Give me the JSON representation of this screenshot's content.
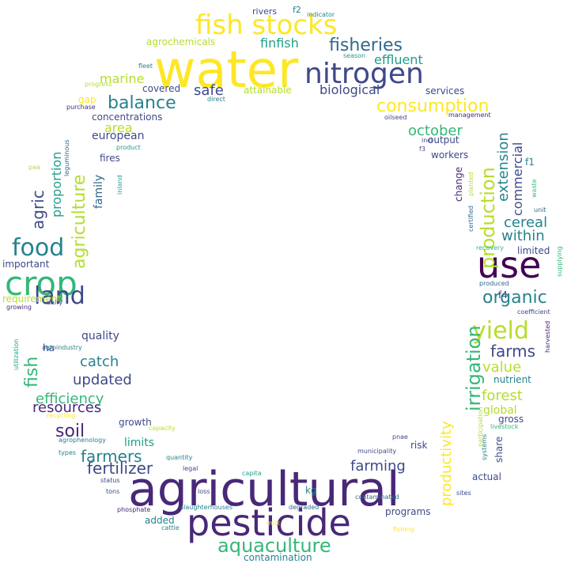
{
  "palette": {
    "yellow": "#fde725",
    "lime": "#b5de2b",
    "light_green": "#6ece58",
    "green": "#35b779",
    "teal_green": "#1f9e89",
    "teal": "#26828e",
    "blue_teal": "#31688e",
    "indigo": "#3e4989",
    "purple": "#482878",
    "dark_purple": "#440154"
  },
  "words": [
    "water",
    "agricultural",
    "pesticide",
    "use",
    "crop",
    "nitrogen",
    "fish stocks",
    "land",
    "food",
    "yield",
    "aquaculture",
    "irrigation",
    "agriculture",
    "production",
    "balance",
    "fisheries",
    "soil",
    "consumption",
    "organic",
    "farms",
    "fertilizer",
    "farmers",
    "fish",
    "agric",
    "productivity",
    "updated",
    "resources",
    "efficiency",
    "catch",
    "value",
    "farming",
    "forest",
    "finfish",
    "marine",
    "effluent",
    "biological",
    "safe",
    "october",
    "cereal",
    "within",
    "extension",
    "commercial",
    "proportion",
    "area",
    "european",
    "quality",
    "family",
    "global",
    "limits",
    "nutrient",
    "programs",
    "risk",
    "contamination",
    "added",
    "fires",
    "concentrations",
    "covered",
    "agrochemicals",
    "attainable",
    "services",
    "rivers",
    "f2",
    "indicator",
    "gap",
    "purchase",
    "direct",
    "fleet",
    "progress",
    "season",
    "management",
    "oilseed",
    "incl",
    "output",
    "workers",
    "f3",
    "f1",
    "change",
    "planted",
    "certified",
    "waste",
    "unit",
    "recovery",
    "supplying",
    "produced",
    "f4",
    "coefficient",
    "harvested",
    "limited",
    "important",
    "requirement",
    "dairy",
    "growing",
    "utilization",
    "agroindustry",
    "ha",
    "recycling",
    "capacity",
    "agrophenology",
    "types",
    "growth",
    "quantity",
    "legal",
    "status",
    "capita",
    "tons",
    "loss",
    "phosphate",
    "slaughterhouses",
    "cattle",
    "milk",
    "degraded",
    "contaminated",
    "kg",
    "municipality",
    "pnae",
    "sites",
    "actual",
    "share",
    "systems",
    "participation",
    "livestock",
    "gross",
    "fishing",
    "product",
    "inland",
    "leguminous",
    "paa"
  ]
}
